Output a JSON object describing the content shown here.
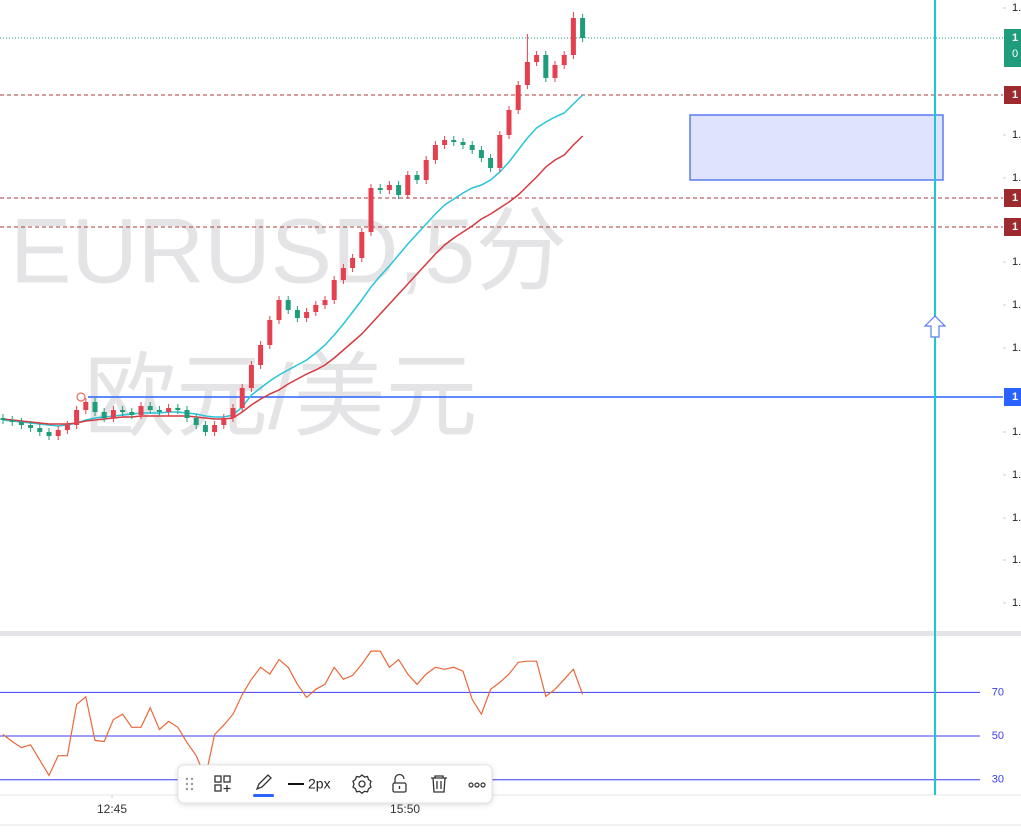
{
  "chart_data": {
    "type": "candlestick",
    "watermark": [
      "EURUSD,5分",
      "欧元/美元"
    ],
    "up_color": "#e5404f",
    "down_color": "#1f9c7b",
    "ylim": [
      0,
      632
    ],
    "yticks": [
      {
        "value": 624,
        "label": "1."
      },
      {
        "value": 497,
        "label": "1."
      },
      {
        "value": 454,
        "label": "1."
      },
      {
        "value": 370,
        "label": "1."
      },
      {
        "value": 327,
        "label": "1."
      },
      {
        "value": 284,
        "label": "1."
      },
      {
        "value": 200,
        "label": "1."
      },
      {
        "value": 157,
        "label": "1."
      },
      {
        "value": 114,
        "label": "1."
      },
      {
        "value": 72,
        "label": "1."
      },
      {
        "value": 29,
        "label": "1."
      }
    ],
    "candles": [
      [
        214,
        218,
        208,
        212
      ],
      [
        212,
        216,
        206,
        210
      ],
      [
        210,
        214,
        203,
        207
      ],
      [
        207,
        211,
        200,
        204
      ],
      [
        204,
        208,
        196,
        200
      ],
      [
        200,
        204,
        192,
        196
      ],
      [
        196,
        206,
        192,
        202
      ],
      [
        202,
        211,
        198,
        207
      ],
      [
        207,
        226,
        203,
        222
      ],
      [
        222,
        234,
        218,
        230
      ],
      [
        230,
        234,
        216,
        220
      ],
      [
        220,
        224,
        210,
        214
      ],
      [
        214,
        226,
        210,
        222
      ],
      [
        222,
        226,
        216,
        220
      ],
      [
        220,
        224,
        213,
        217
      ],
      [
        217,
        230,
        213,
        226
      ],
      [
        226,
        230,
        218,
        222
      ],
      [
        222,
        226,
        216,
        220
      ],
      [
        220,
        228,
        216,
        224
      ],
      [
        224,
        228,
        218,
        222
      ],
      [
        222,
        226,
        210,
        214
      ],
      [
        214,
        218,
        203,
        207
      ],
      [
        207,
        211,
        196,
        200
      ],
      [
        200,
        211,
        196,
        207
      ],
      [
        207,
        218,
        203,
        214
      ],
      [
        214,
        228,
        210,
        224
      ],
      [
        224,
        248,
        220,
        244
      ],
      [
        244,
        271,
        240,
        267
      ],
      [
        267,
        291,
        263,
        287
      ],
      [
        287,
        316,
        283,
        312
      ],
      [
        312,
        336,
        308,
        332
      ],
      [
        332,
        336,
        318,
        322
      ],
      [
        322,
        326,
        310,
        314
      ],
      [
        314,
        324,
        310,
        320
      ],
      [
        320,
        331,
        316,
        327
      ],
      [
        327,
        336,
        323,
        332
      ],
      [
        332,
        356,
        328,
        352
      ],
      [
        352,
        368,
        348,
        364
      ],
      [
        364,
        378,
        360,
        374
      ],
      [
        374,
        404,
        370,
        400
      ],
      [
        400,
        448,
        396,
        444
      ],
      [
        444,
        448,
        438,
        442
      ],
      [
        442,
        451,
        438,
        447
      ],
      [
        447,
        451,
        433,
        437
      ],
      [
        437,
        461,
        433,
        457
      ],
      [
        457,
        461,
        448,
        452
      ],
      [
        452,
        476,
        448,
        472
      ],
      [
        472,
        491,
        468,
        487
      ],
      [
        487,
        496,
        483,
        492
      ],
      [
        492,
        496,
        486,
        490
      ],
      [
        490,
        494,
        483,
        487
      ],
      [
        487,
        491,
        478,
        482
      ],
      [
        482,
        486,
        470,
        474
      ],
      [
        474,
        478,
        460,
        464
      ],
      [
        464,
        501,
        460,
        497
      ],
      [
        497,
        526,
        493,
        522
      ],
      [
        522,
        551,
        518,
        547
      ],
      [
        547,
        598,
        543,
        570
      ],
      [
        570,
        581,
        566,
        577
      ],
      [
        577,
        581,
        550,
        554
      ],
      [
        554,
        571,
        550,
        567
      ],
      [
        567,
        581,
        563,
        577
      ],
      [
        577,
        620,
        573,
        614
      ],
      [
        614,
        618,
        590,
        594
      ]
    ],
    "lines": [
      {
        "color": "#26c6da",
        "values": [
          212,
          211,
          210,
          209,
          208,
          207,
          206,
          207,
          209,
          212,
          214,
          215,
          216,
          217,
          218,
          219,
          219,
          219,
          220,
          220,
          219,
          218,
          216,
          215,
          215,
          217,
          225,
          237,
          244,
          251,
          257,
          262,
          267,
          272,
          279,
          287,
          297,
          308,
          320,
          332,
          345,
          356,
          366,
          377,
          388,
          398,
          408,
          418,
          427,
          433,
          439,
          444,
          447,
          452,
          460,
          470,
          482,
          494,
          504,
          510,
          515,
          519,
          528,
          537
        ]
      },
      {
        "color": "#d6393f",
        "values": [
          213,
          212,
          211,
          210,
          209,
          208,
          208,
          208,
          209,
          211,
          212,
          213,
          214,
          215,
          215,
          216,
          216,
          216,
          216,
          216,
          216,
          215,
          214,
          213,
          213,
          214,
          220,
          227,
          233,
          238,
          242,
          248,
          253,
          258,
          262,
          267,
          274,
          282,
          290,
          298,
          308,
          318,
          328,
          338,
          348,
          358,
          368,
          378,
          387,
          394,
          400,
          406,
          413,
          418,
          424,
          430,
          437,
          446,
          455,
          465,
          472,
          477,
          487,
          496
        ]
      }
    ],
    "levels": [
      {
        "value": 594,
        "style": "dotted",
        "color": "#1f9c7b"
      },
      {
        "value": 537,
        "style": "dashed",
        "color": "#b0393b"
      },
      {
        "value": 434,
        "style": "dashed",
        "color": "#b0393b"
      },
      {
        "value": 405,
        "style": "dashed",
        "color": "#b0393b"
      },
      {
        "value": 235,
        "style": "solid",
        "color": "#2962ff"
      }
    ],
    "price_badges": [
      {
        "value": 594,
        "label": "1",
        "sublabel": "0",
        "color": "#1f9c7b"
      },
      {
        "value": 537,
        "label": "1",
        "color": "#9c2a2e"
      },
      {
        "value": 434,
        "label": "1",
        "color": "#9c2a2e"
      },
      {
        "value": 405,
        "label": "1",
        "color": "#9c2a2e"
      },
      {
        "value": 235,
        "label": "1",
        "color": "#2962ff"
      }
    ],
    "zone": {
      "top": 517,
      "bottom": 452,
      "color": "#dfe3fb",
      "border": "#5b7bf0"
    },
    "xticks": [
      {
        "value": 11.85,
        "label": "12:45"
      },
      {
        "value": 43.7,
        "label": "15:50"
      }
    ],
    "rsi": {
      "color": "#e8683a",
      "line_color": "#3d3df0",
      "ylim": [
        23,
        94
      ],
      "yticks": [
        70,
        50,
        30
      ],
      "values": [
        50.7,
        47.5,
        44.7,
        46,
        39,
        32,
        41,
        41,
        64.5,
        68,
        48,
        47.5,
        57.6,
        60,
        54,
        54,
        63,
        53,
        56.7,
        54,
        47,
        41,
        31,
        50.7,
        55,
        60,
        69,
        76,
        81.5,
        78.4,
        85,
        81.5,
        73.7,
        67.7,
        71.4,
        73.7,
        81.5,
        76,
        77.8,
        82.9,
        88.9,
        88.9,
        81.5,
        85,
        78.4,
        73.7,
        78.4,
        81.5,
        80.6,
        81.5,
        79.7,
        66.8,
        60,
        71.4,
        74.6,
        78.4,
        83.8,
        84.3,
        84.3,
        68.2,
        71.4,
        76,
        80.6,
        69.1
      ]
    },
    "toolbar": {
      "width_label": "2px"
    }
  }
}
